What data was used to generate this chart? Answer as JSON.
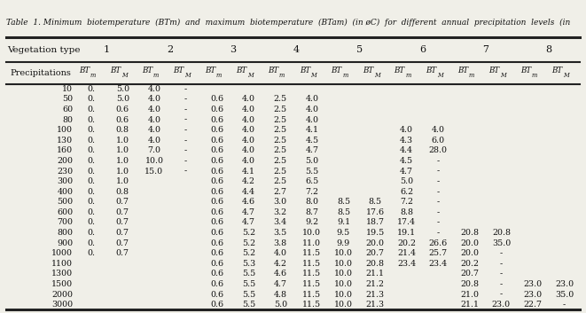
{
  "title": "Table  1. Minimum  biotemperature  (BTm)  and  maximum  biotemperature  (BTam)  (in øC)  for  different  annual  precipitation  levels  (in",
  "rows": [
    [
      "10",
      "0.",
      "5.0",
      "4.0",
      "-",
      "",
      "",
      "",
      "",
      "",
      "",
      "",
      "",
      "",
      "",
      "",
      ""
    ],
    [
      "50",
      "0.",
      "5.0",
      "4.0",
      "-",
      "0.6",
      "4.0",
      "2.5",
      "4.0",
      "",
      "",
      "",
      "",
      "",
      "",
      "",
      ""
    ],
    [
      "60",
      "0.",
      "0.6",
      "4.0",
      "-",
      "0.6",
      "4.0",
      "2.5",
      "4.0",
      "",
      "",
      "",
      "",
      "",
      "",
      "",
      ""
    ],
    [
      "80",
      "0.",
      "0.6",
      "4.0",
      "-",
      "0.6",
      "4.0",
      "2.5",
      "4.0",
      "",
      "",
      "",
      "",
      "",
      "",
      "",
      ""
    ],
    [
      "100",
      "0.",
      "0.8",
      "4.0",
      "-",
      "0.6",
      "4.0",
      "2.5",
      "4.1",
      "",
      "",
      "4.0",
      "4.0",
      "",
      "",
      "",
      ""
    ],
    [
      "130",
      "0.",
      "1.0",
      "4.0",
      "-",
      "0.6",
      "4.0",
      "2.5",
      "4.5",
      "",
      "",
      "4.3",
      "6.0",
      "",
      "",
      "",
      ""
    ],
    [
      "160",
      "0.",
      "1.0",
      "7.0",
      "-",
      "0.6",
      "4.0",
      "2.5",
      "4.7",
      "",
      "",
      "4.4",
      "28.0",
      "",
      "",
      "",
      ""
    ],
    [
      "200",
      "0.",
      "1.0",
      "10.0",
      "-",
      "0.6",
      "4.0",
      "2.5",
      "5.0",
      "",
      "",
      "4.5",
      "-",
      "",
      "",
      "",
      ""
    ],
    [
      "230",
      "0.",
      "1.0",
      "15.0",
      "-",
      "0.6",
      "4.1",
      "2.5",
      "5.5",
      "",
      "",
      "4.7",
      "-",
      "",
      "",
      "",
      ""
    ],
    [
      "300",
      "0.",
      "1.0",
      "",
      "",
      "0.6",
      "4.2",
      "2.5",
      "6.5",
      "",
      "",
      "5.0",
      "-",
      "",
      "",
      "",
      ""
    ],
    [
      "400",
      "0.",
      "0.8",
      "",
      "",
      "0.6",
      "4.4",
      "2.7",
      "7.2",
      "",
      "",
      "6.2",
      "-",
      "",
      "",
      "",
      ""
    ],
    [
      "500",
      "0.",
      "0.7",
      "",
      "",
      "0.6",
      "4.6",
      "3.0",
      "8.0",
      "8.5",
      "8.5",
      "7.2",
      "-",
      "",
      "",
      "",
      ""
    ],
    [
      "600",
      "0.",
      "0.7",
      "",
      "",
      "0.6",
      "4.7",
      "3.2",
      "8.7",
      "8.5",
      "17.6",
      "8.8",
      "-",
      "",
      "",
      "",
      ""
    ],
    [
      "700",
      "0.",
      "0.7",
      "",
      "",
      "0.6",
      "4.7",
      "3.4",
      "9.2",
      "9.1",
      "18.7",
      "17.4",
      "-",
      "",
      "",
      "",
      ""
    ],
    [
      "800",
      "0.",
      "0.7",
      "",
      "",
      "0.6",
      "5.2",
      "3.5",
      "10.0",
      "9.5",
      "19.5",
      "19.1",
      "-",
      "20.8",
      "20.8",
      "",
      ""
    ],
    [
      "900",
      "0.",
      "0.7",
      "",
      "",
      "0.6",
      "5.2",
      "3.8",
      "11.0",
      "9.9",
      "20.0",
      "20.2",
      "26.6",
      "20.0",
      "35.0",
      "",
      ""
    ],
    [
      "1000",
      "0.",
      "0.7",
      "",
      "",
      "0.6",
      "5.2",
      "4.0",
      "11.5",
      "10.0",
      "20.7",
      "21.4",
      "25.7",
      "20.0",
      "-",
      "",
      ""
    ],
    [
      "1100",
      "",
      "",
      "",
      "",
      "0.6",
      "5.3",
      "4.2",
      "11.5",
      "10.0",
      "20.8",
      "23.4",
      "23.4",
      "20.2",
      "-",
      "",
      ""
    ],
    [
      "1300",
      "",
      "",
      "",
      "",
      "0.6",
      "5.5",
      "4.6",
      "11.5",
      "10.0",
      "21.1",
      "",
      "",
      "20.7",
      "-",
      "",
      ""
    ],
    [
      "1500",
      "",
      "",
      "",
      "",
      "0.6",
      "5.5",
      "4.7",
      "11.5",
      "10.0",
      "21.2",
      "",
      "",
      "20.8",
      "-",
      "23.0",
      "23.0"
    ],
    [
      "2000",
      "",
      "",
      "",
      "",
      "0.6",
      "5.5",
      "4.8",
      "11.5",
      "10.0",
      "21.3",
      "",
      "",
      "21.0",
      "-",
      "23.0",
      "35.0"
    ],
    [
      "3000",
      "",
      "",
      "",
      "",
      "0.6",
      "5.5",
      "5.0",
      "11.5",
      "10.0",
      "21.3",
      "",
      "",
      "21.1",
      "23.0",
      "22.7",
      "-"
    ]
  ],
  "bg_color": "#f0efe8",
  "line_color": "#222222"
}
